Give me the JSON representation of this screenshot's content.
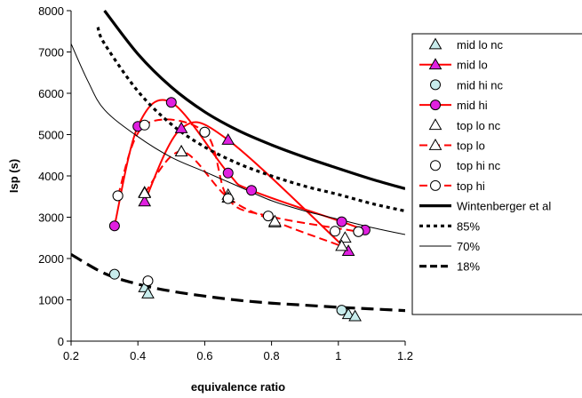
{
  "chart_data": {
    "type": "line",
    "title": "",
    "xlabel": "equivalence ratio",
    "ylabel": "Isp (s)",
    "xlim": [
      0.2,
      1.2
    ],
    "ylim": [
      0,
      8000
    ],
    "xticks": [
      "0.2",
      "0.4",
      "0.6",
      "0.8",
      "1",
      "1.2"
    ],
    "yticks": [
      "0",
      "1000",
      "2000",
      "3000",
      "4000",
      "5000",
      "6000",
      "7000",
      "8000"
    ],
    "grid": false,
    "legend": "right",
    "series": [
      {
        "name": "mid lo nc",
        "marker": "triangle",
        "fill": "#c8ecec",
        "stroke": "#000000",
        "line": "none",
        "x": [
          0.42,
          0.43,
          1.03,
          1.05
        ],
        "y": [
          1300,
          1150,
          650,
          600
        ]
      },
      {
        "name": "mid lo",
        "marker": "triangle",
        "fill": "#e020e0",
        "stroke": "#000000",
        "line": "solid-smooth",
        "lineColor": "#ff0000",
        "x": [
          0.42,
          0.53,
          0.67,
          1.03
        ],
        "y": [
          3380,
          5150,
          4870,
          2180
        ]
      },
      {
        "name": "mid hi nc",
        "marker": "circle",
        "fill": "#c8ecec",
        "stroke": "#000000",
        "line": "none",
        "x": [
          0.33,
          1.01
        ],
        "y": [
          1620,
          750
        ]
      },
      {
        "name": "mid hi",
        "marker": "circle",
        "fill": "#e020e0",
        "stroke": "#000000",
        "line": "solid-smooth",
        "lineColor": "#ff0000",
        "x": [
          0.33,
          0.4,
          0.5,
          0.67,
          0.74,
          1.01,
          1.08
        ],
        "y": [
          2790,
          5200,
          5780,
          4070,
          3650,
          2890,
          2690
        ]
      },
      {
        "name": "top lo nc",
        "marker": "triangle",
        "fill": "#ffffff",
        "stroke": "#000000",
        "line": "none",
        "x": [
          0.42,
          0.53,
          0.67,
          0.81,
          1.02
        ],
        "y": [
          3600,
          4590,
          3540,
          2870,
          2500
        ]
      },
      {
        "name": "top lo",
        "marker": "triangle",
        "fill": "#ffffff",
        "stroke": "#000000",
        "line": "dashed-smooth",
        "lineColor": "#ff0000",
        "x": [
          0.42,
          0.53,
          0.67,
          0.81,
          1.01
        ],
        "y": [
          3580,
          4590,
          3470,
          2900,
          2300
        ]
      },
      {
        "name": "top hi nc",
        "marker": "circle",
        "fill": "#ffffff",
        "stroke": "#000000",
        "line": "none",
        "x": [
          0.34,
          0.43,
          0.6,
          0.99,
          1.06
        ],
        "y": [
          3520,
          1460,
          5060,
          2660,
          2650
        ]
      },
      {
        "name": "top hi",
        "marker": "circle",
        "fill": "#ffffff",
        "stroke": "#000000",
        "line": "dashed-smooth",
        "lineColor": "#ff0000",
        "x": [
          0.34,
          0.42,
          0.6,
          0.67,
          0.79,
          1.06
        ],
        "y": [
          3520,
          5230,
          5060,
          3450,
          3030,
          2650
        ]
      },
      {
        "name": "Wintenberger et al",
        "marker": "none",
        "line": "solid-thick",
        "lineColor": "#000000",
        "x": [
          0.3,
          0.4,
          0.5,
          0.6,
          0.7,
          0.8,
          0.9,
          1.0,
          1.1,
          1.2
        ],
        "y": [
          8000,
          6950,
          6150,
          5550,
          5100,
          4750,
          4450,
          4180,
          3920,
          3690
        ]
      },
      {
        "name": "85%",
        "marker": "none",
        "line": "dotted-thick",
        "lineColor": "#000000",
        "x": [
          0.28,
          0.3,
          0.4,
          0.5,
          0.6,
          0.7,
          0.8,
          0.9,
          1.0,
          1.1,
          1.2
        ],
        "y": [
          7600,
          7200,
          6050,
          5250,
          4700,
          4300,
          4000,
          3750,
          3550,
          3330,
          3150
        ]
      },
      {
        "name": "70%",
        "marker": "none",
        "line": "solid-thin",
        "lineColor": "#000000",
        "x": [
          0.2,
          0.25,
          0.3,
          0.4,
          0.5,
          0.6,
          0.7,
          0.8,
          0.9,
          1.0,
          1.1,
          1.2
        ],
        "y": [
          7200,
          6300,
          5600,
          4950,
          4450,
          4100,
          3750,
          3400,
          3150,
          2950,
          2750,
          2580
        ]
      },
      {
        "name": "18%",
        "marker": "none",
        "line": "dashed-thick",
        "lineColor": "#000000",
        "x": [
          0.2,
          0.3,
          0.4,
          0.5,
          0.6,
          0.7,
          0.8,
          0.9,
          1.0,
          1.1,
          1.2
        ],
        "y": [
          2100,
          1640,
          1380,
          1210,
          1090,
          990,
          920,
          870,
          820,
          780,
          740
        ]
      }
    ]
  }
}
